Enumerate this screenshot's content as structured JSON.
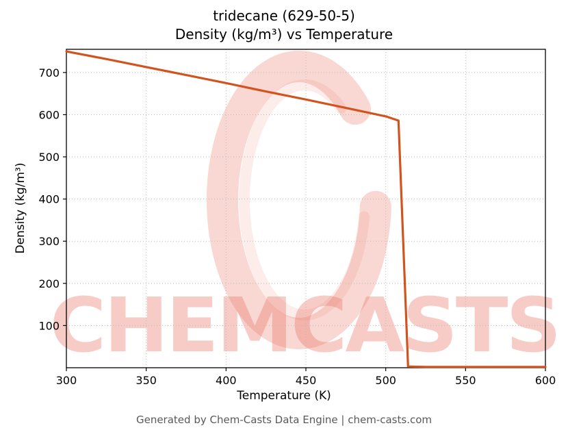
{
  "chart_data": {
    "type": "line",
    "title_lines": [
      "tridecane (629-50-5)",
      "Density (kg/m³) vs Temperature"
    ],
    "xlabel": "Temperature (K)",
    "ylabel": "Density (kg/m³)",
    "xlim": [
      300,
      600
    ],
    "ylim": [
      0,
      755
    ],
    "xticks": [
      300,
      350,
      400,
      450,
      500,
      550,
      600
    ],
    "yticks": [
      100,
      200,
      300,
      400,
      500,
      600,
      700
    ],
    "grid": true,
    "legend": false,
    "series": [
      {
        "name": "Density (kg/m³)",
        "color": "#d2531d",
        "x": [
          300,
          325,
          350,
          375,
          400,
          425,
          450,
          475,
          500,
          508,
          514,
          525,
          550,
          575,
          600
        ],
        "y": [
          750,
          732,
          713,
          694,
          675,
          655,
          636,
          616,
          596,
          586,
          3,
          2,
          2,
          2,
          2
        ]
      }
    ]
  },
  "watermark": {
    "text": "CHEMCASTS",
    "logo_icon": "chemcasts-c-logo",
    "color": "#eb7a69"
  },
  "footer": {
    "text": "Generated by Chem-Casts Data Engine | chem-casts.com"
  },
  "colors": {
    "line": "#d2531d",
    "grid": "#b9b9b9",
    "axis": "#000000",
    "watermark": "#eb7a69",
    "footer_text": "#595959"
  }
}
